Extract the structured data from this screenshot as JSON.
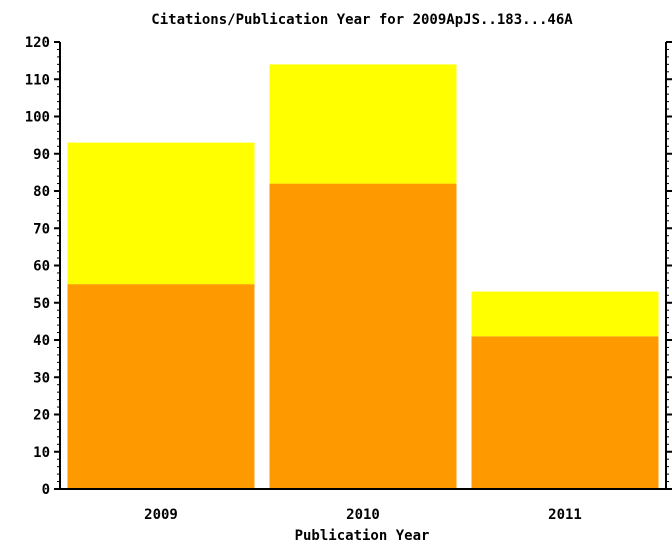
{
  "chart_data": {
    "type": "bar",
    "stacked": true,
    "title": "Citations/Publication Year for 2009ApJS..183...46A",
    "xlabel": "Publication Year",
    "ylabel": "",
    "ylim": [
      0,
      120
    ],
    "yticks": [
      0,
      10,
      20,
      30,
      40,
      50,
      60,
      70,
      80,
      90,
      100,
      110,
      120
    ],
    "categories": [
      "2009",
      "2010",
      "2011"
    ],
    "series": [
      {
        "values": [
          55,
          82,
          41
        ],
        "color": "#ff9900"
      },
      {
        "values": [
          38,
          32,
          12
        ],
        "color": "#ffff00"
      }
    ],
    "grid": false,
    "legend": "none"
  }
}
